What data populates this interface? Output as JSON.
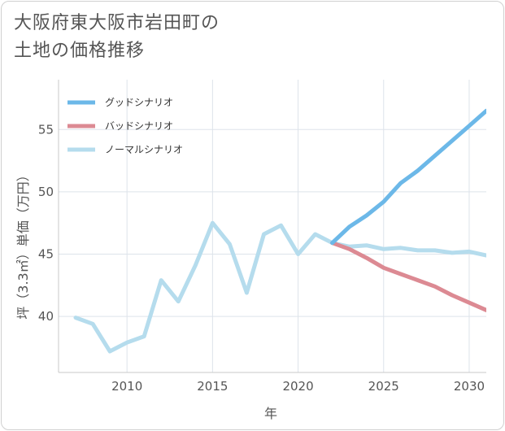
{
  "title_line1": "大阪府東大阪市岩田町の",
  "title_line2": "土地の価格推移",
  "chart_data": {
    "type": "line",
    "xlabel": "年",
    "ylabel": "坪（3.3㎡）単価（万円）",
    "xlim": [
      2006,
      2031
    ],
    "ylim": [
      35.5,
      59
    ],
    "x_ticks": [
      2010,
      2015,
      2020,
      2025,
      2030
    ],
    "y_ticks": [
      40,
      45,
      50,
      55
    ],
    "grid": true,
    "legend_position": "top-left",
    "series": [
      {
        "name": "グッドシナリオ",
        "color": "#6cb8e8",
        "x": [
          2022,
          2023,
          2024,
          2025,
          2026,
          2027,
          2028,
          2029,
          2030,
          2031
        ],
        "values": [
          45.9,
          47.2,
          48.1,
          49.2,
          50.7,
          51.7,
          52.9,
          54.1,
          55.3,
          56.5
        ]
      },
      {
        "name": "バッドシナリオ",
        "color": "#dc8a93",
        "x": [
          2022,
          2023,
          2024,
          2025,
          2026,
          2027,
          2028,
          2029,
          2030,
          2031
        ],
        "values": [
          45.9,
          45.4,
          44.7,
          43.9,
          43.4,
          42.9,
          42.4,
          41.7,
          41.1,
          40.5
        ]
      },
      {
        "name": "ノーマルシナリオ",
        "color": "#b5dced",
        "x": [
          2007,
          2008,
          2009,
          2010,
          2011,
          2012,
          2013,
          2014,
          2015,
          2016,
          2017,
          2018,
          2019,
          2020,
          2021,
          2022,
          2023,
          2024,
          2025,
          2026,
          2027,
          2028,
          2029,
          2030,
          2031
        ],
        "values": [
          39.9,
          39.4,
          37.2,
          37.9,
          38.4,
          42.9,
          41.2,
          44.1,
          47.5,
          45.8,
          41.9,
          46.6,
          47.3,
          45.0,
          46.6,
          45.9,
          45.6,
          45.7,
          45.4,
          45.5,
          45.3,
          45.3,
          45.1,
          45.2,
          44.9
        ]
      }
    ]
  }
}
